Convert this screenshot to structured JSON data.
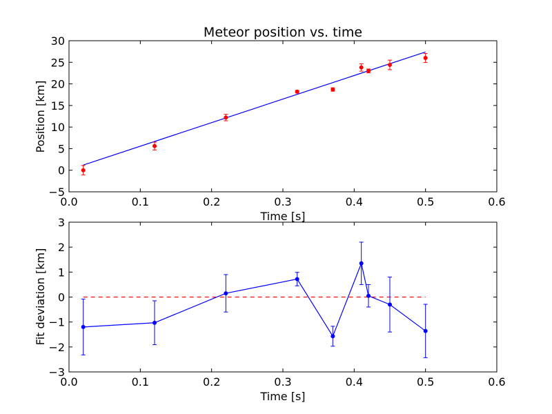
{
  "chart_data": [
    {
      "type": "scatter",
      "title": "Meteor position vs. time",
      "xlabel": "Time [s]",
      "ylabel": "Position [km]",
      "xlim": [
        0.0,
        0.6
      ],
      "ylim": [
        -5,
        30
      ],
      "xticks": [
        "0.0",
        "0.1",
        "0.2",
        "0.3",
        "0.4",
        "0.5",
        "0.6"
      ],
      "yticks": [
        "−5",
        "0",
        "5",
        "10",
        "15",
        "20",
        "25",
        "30"
      ],
      "xtick_values": [
        0.0,
        0.1,
        0.2,
        0.3,
        0.4,
        0.5,
        0.6
      ],
      "ytick_values": [
        -5,
        0,
        5,
        10,
        15,
        20,
        25,
        30
      ],
      "grid": false,
      "points": {
        "color": "#ff0000",
        "x": [
          0.02,
          0.12,
          0.22,
          0.32,
          0.37,
          0.41,
          0.42,
          0.45,
          0.5
        ],
        "y": [
          0.0,
          5.6,
          12.2,
          18.2,
          18.7,
          23.8,
          23.0,
          24.4,
          26.0
        ],
        "err": [
          1.1,
          0.9,
          0.75,
          0.3,
          0.4,
          0.85,
          0.45,
          1.1,
          1.05
        ]
      },
      "fit_line": {
        "color": "#0000ff",
        "x": [
          0.02,
          0.5
        ],
        "y": [
          1.2,
          27.4
        ]
      }
    },
    {
      "type": "line",
      "title": "",
      "xlabel": "Time [s]",
      "ylabel": "Fit deviation [km]",
      "xlim": [
        0.0,
        0.6
      ],
      "ylim": [
        -3,
        3
      ],
      "xticks": [
        "0.0",
        "0.1",
        "0.2",
        "0.3",
        "0.4",
        "0.5",
        "0.6"
      ],
      "yticks": [
        "−3",
        "−2",
        "−1",
        "0",
        "1",
        "2",
        "3"
      ],
      "xtick_values": [
        0.0,
        0.1,
        0.2,
        0.3,
        0.4,
        0.5,
        0.6
      ],
      "ytick_values": [
        -3,
        -2,
        -1,
        0,
        1,
        2,
        3
      ],
      "grid": false,
      "series": {
        "color": "#0000ff",
        "x": [
          0.02,
          0.12,
          0.22,
          0.32,
          0.37,
          0.41,
          0.42,
          0.45,
          0.5
        ],
        "y": [
          -1.2,
          -1.03,
          0.15,
          0.72,
          -1.57,
          1.35,
          0.05,
          -0.3,
          -1.36
        ],
        "err": [
          1.12,
          0.88,
          0.75,
          0.27,
          0.4,
          0.85,
          0.45,
          1.1,
          1.07
        ]
      },
      "reference_line": {
        "color": "#ff0000",
        "style": "dashed",
        "x": [
          0.02,
          0.5
        ],
        "y": [
          0,
          0
        ]
      }
    }
  ]
}
